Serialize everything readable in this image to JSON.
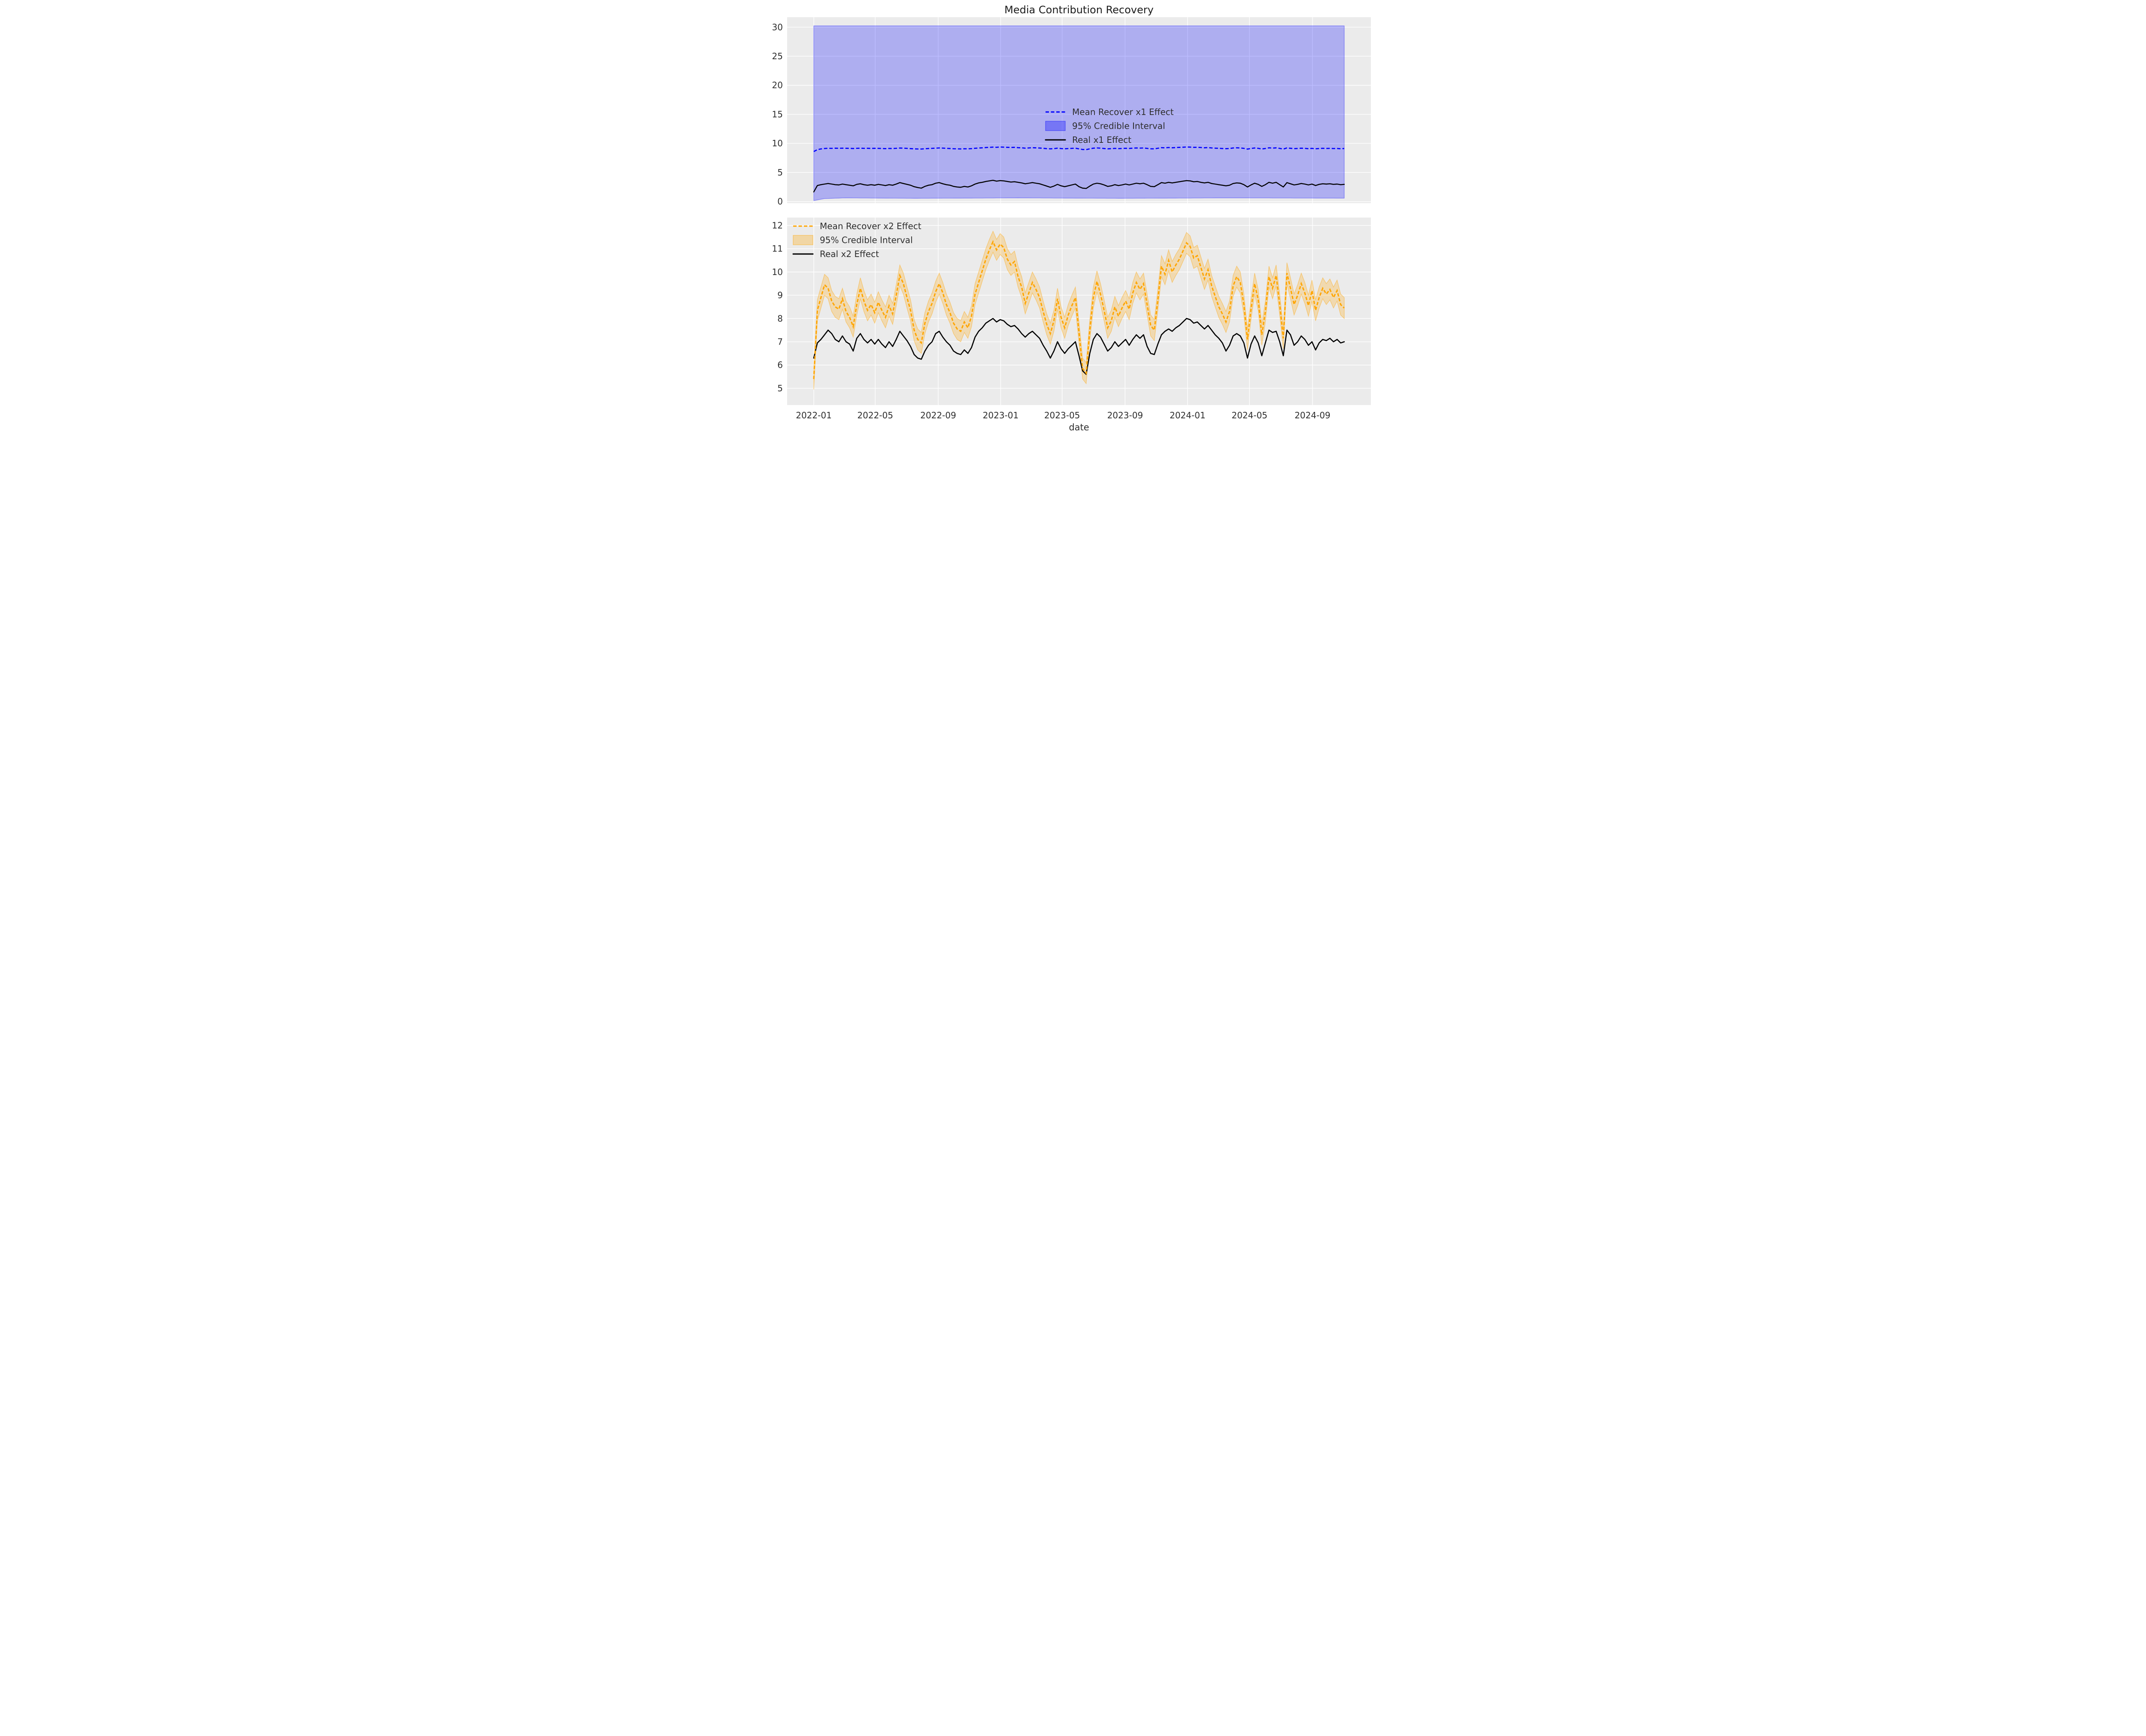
{
  "figure": {
    "title": "Media Contribution Recovery",
    "xlabel": "date",
    "background": "#ffffff",
    "axes_background": "#ebebeb",
    "grid_color": "#ffffff"
  },
  "colors": {
    "x1_mean": "#0000ff",
    "x1_band_fill": "rgba(0,0,255,0.26)",
    "x1_band_edge": "rgba(0,0,255,0.38)",
    "x2_mean": "#ffa500",
    "x2_band_fill": "rgba(255,165,0,0.25)",
    "x2_band_edge": "rgba(255,165,0,0.45)",
    "real_line": "#000000"
  },
  "legend_top": {
    "items": [
      {
        "label": "Mean Recover x1 Effect",
        "swatch": "dashed-line",
        "color": "#0000ff"
      },
      {
        "label": "95% Credible Interval",
        "swatch": "patch",
        "fill": "rgba(0,0,255,0.32)",
        "edge": "rgba(0,0,255,0.45)"
      },
      {
        "label": "Real x1 Effect",
        "swatch": "solid-line",
        "color": "#000000"
      }
    ]
  },
  "legend_bottom": {
    "items": [
      {
        "label": "Mean Recover x2 Effect",
        "swatch": "dashed-line",
        "color": "#ffa500"
      },
      {
        "label": "95% Credible Interval",
        "swatch": "patch",
        "fill": "rgba(255,165,0,0.30)",
        "edge": "rgba(255,165,0,0.5)"
      },
      {
        "label": "Real x2 Effect",
        "swatch": "solid-line",
        "color": "#000000"
      }
    ]
  },
  "chart_data": [
    {
      "type": "line",
      "panel": "top",
      "x_unit": "days since 2022-01-01, weekly sampling (step 7)",
      "x_step_days": 7,
      "x_domain_days": [
        -52,
        1088
      ],
      "x_data_end_day": 1036,
      "ylim": [
        -0.285,
        31.72
      ],
      "yticks": [
        0,
        5,
        10,
        15,
        20,
        25,
        30
      ],
      "grid": true,
      "legend_position": "center",
      "series": [
        {
          "name": "Mean Recover x1 Effect",
          "style": "dashed",
          "values": [
            8.6,
            8.92,
            9.05,
            9.12,
            9.16,
            9.14,
            9.17,
            9.15,
            9.18,
            9.16,
            9.14,
            9.12,
            9.15,
            9.17,
            9.14,
            9.16,
            9.13,
            9.15,
            9.14,
            9.12,
            9.1,
            9.13,
            9.11,
            9.15,
            9.2,
            9.18,
            9.14,
            9.1,
            9.06,
            9.04,
            9.03,
            9.08,
            9.12,
            9.14,
            9.18,
            9.22,
            9.19,
            9.15,
            9.12,
            9.08,
            9.06,
            9.05,
            9.08,
            9.06,
            9.1,
            9.16,
            9.2,
            9.24,
            9.28,
            9.32,
            9.36,
            9.33,
            9.38,
            9.35,
            9.32,
            9.3,
            9.32,
            9.27,
            9.24,
            9.18,
            9.22,
            9.26,
            9.23,
            9.2,
            9.15,
            9.1,
            9.06,
            9.1,
            9.17,
            9.11,
            9.07,
            9.11,
            9.14,
            9.17,
            9.06,
            8.95,
            8.93,
            9.07,
            9.17,
            9.22,
            9.18,
            9.12,
            9.06,
            9.09,
            9.14,
            9.1,
            9.13,
            9.16,
            9.13,
            9.18,
            9.21,
            9.19,
            9.21,
            9.14,
            9.07,
            9.06,
            9.16,
            9.27,
            9.24,
            9.29,
            9.25,
            9.28,
            9.31,
            9.34,
            9.38,
            9.36,
            9.32,
            9.33,
            9.29,
            9.25,
            9.28,
            9.22,
            9.18,
            9.15,
            9.12,
            9.09,
            9.12,
            9.21,
            9.24,
            9.22,
            9.14,
            9.02,
            9.12,
            9.21,
            9.15,
            9.04,
            9.12,
            9.24,
            9.19,
            9.23,
            9.14,
            9.02,
            9.22,
            9.16,
            9.1,
            9.13,
            9.17,
            9.14,
            9.09,
            9.14,
            9.07,
            9.12,
            9.15,
            9.13,
            9.14,
            9.11,
            9.13,
            9.08,
            9.12
          ]
        },
        {
          "name": "95% Credible Interval",
          "style": "band",
          "upper_keypoints": [
            [
              0,
              30.22
            ],
            [
              1036,
              30.22
            ]
          ],
          "lower_keypoints": [
            [
              0,
              0.15
            ],
            [
              21,
              0.5
            ],
            [
              60,
              0.62
            ],
            [
              200,
              0.55
            ],
            [
              400,
              0.62
            ],
            [
              600,
              0.55
            ],
            [
              800,
              0.62
            ],
            [
              1036,
              0.58
            ]
          ]
        },
        {
          "name": "Real x1 Effect",
          "style": "solid",
          "values": [
            1.65,
            2.75,
            2.9,
            3.0,
            3.1,
            3.0,
            2.9,
            2.85,
            3.0,
            2.9,
            2.8,
            2.7,
            2.95,
            3.05,
            2.9,
            2.8,
            2.9,
            2.8,
            2.95,
            2.85,
            2.75,
            2.9,
            2.8,
            3.0,
            3.25,
            3.1,
            2.95,
            2.8,
            2.55,
            2.4,
            2.3,
            2.6,
            2.8,
            2.9,
            3.15,
            3.25,
            3.05,
            2.9,
            2.8,
            2.6,
            2.5,
            2.45,
            2.6,
            2.5,
            2.7,
            3.0,
            3.2,
            3.3,
            3.45,
            3.55,
            3.65,
            3.5,
            3.6,
            3.55,
            3.45,
            3.35,
            3.4,
            3.3,
            3.2,
            3.05,
            3.15,
            3.25,
            3.15,
            3.05,
            2.85,
            2.65,
            2.45,
            2.65,
            2.95,
            2.7,
            2.55,
            2.7,
            2.85,
            3.0,
            2.55,
            2.3,
            2.25,
            2.65,
            3.0,
            3.15,
            3.05,
            2.85,
            2.6,
            2.7,
            2.9,
            2.75,
            2.85,
            3.0,
            2.85,
            3.0,
            3.15,
            3.05,
            3.15,
            2.9,
            2.6,
            2.55,
            2.9,
            3.25,
            3.15,
            3.3,
            3.2,
            3.3,
            3.4,
            3.5,
            3.6,
            3.55,
            3.4,
            3.45,
            3.3,
            3.2,
            3.3,
            3.1,
            3.0,
            2.9,
            2.8,
            2.7,
            2.8,
            3.1,
            3.2,
            3.15,
            2.9,
            2.5,
            2.85,
            3.15,
            2.95,
            2.6,
            2.9,
            3.3,
            3.15,
            3.3,
            2.9,
            2.5,
            3.25,
            3.05,
            2.85,
            2.95,
            3.1,
            3.0,
            2.85,
            3.0,
            2.75,
            2.95,
            3.05,
            3.0,
            3.05,
            2.95,
            3.0,
            2.9,
            2.95
          ]
        }
      ]
    },
    {
      "type": "line",
      "panel": "bottom",
      "x_unit": "days since 2022-01-01, weekly sampling (step 7)",
      "x_step_days": 7,
      "x_domain_days": [
        -52,
        1088
      ],
      "x_data_end_day": 1036,
      "ylim": [
        4.28,
        12.34
      ],
      "yticks": [
        5,
        6,
        7,
        8,
        9,
        10,
        11,
        12
      ],
      "grid": true,
      "legend_position": "upper left",
      "ci_halfwidth": 0.45,
      "xticks": [
        {
          "day": 0,
          "label": "2022-01"
        },
        {
          "day": 120,
          "label": "2022-05"
        },
        {
          "day": 243,
          "label": "2022-09"
        },
        {
          "day": 365,
          "label": "2023-01"
        },
        {
          "day": 485,
          "label": "2023-05"
        },
        {
          "day": 608,
          "label": "2023-09"
        },
        {
          "day": 730,
          "label": "2024-01"
        },
        {
          "day": 851,
          "label": "2024-05"
        },
        {
          "day": 974,
          "label": "2024-09"
        }
      ],
      "series": [
        {
          "name": "Mean Recover x2 Effect",
          "style": "dashed",
          "values": [
            5.4,
            8.35,
            8.9,
            9.45,
            9.3,
            8.75,
            8.5,
            8.4,
            8.85,
            8.3,
            8.05,
            7.65,
            8.6,
            9.3,
            8.75,
            8.35,
            8.6,
            8.25,
            8.7,
            8.35,
            8.05,
            8.55,
            8.2,
            9.0,
            9.85,
            9.5,
            8.9,
            8.35,
            7.5,
            7.1,
            6.95,
            7.8,
            8.3,
            8.65,
            9.15,
            9.5,
            9.1,
            8.6,
            8.25,
            7.8,
            7.55,
            7.45,
            7.85,
            7.6,
            8.1,
            9.05,
            9.55,
            10.05,
            10.55,
            10.95,
            11.3,
            10.95,
            11.2,
            11.05,
            10.55,
            10.3,
            10.45,
            9.8,
            9.35,
            8.65,
            9.1,
            9.55,
            9.25,
            8.9,
            8.3,
            7.75,
            7.35,
            7.9,
            8.85,
            8.05,
            7.6,
            8.15,
            8.55,
            8.9,
            7.4,
            5.85,
            5.65,
            7.5,
            8.9,
            9.6,
            9.05,
            8.35,
            7.6,
            7.9,
            8.5,
            8.1,
            8.45,
            8.75,
            8.4,
            9.1,
            9.55,
            9.25,
            9.5,
            8.6,
            7.7,
            7.5,
            8.8,
            10.25,
            9.9,
            10.5,
            10.0,
            10.3,
            10.55,
            10.9,
            11.25,
            11.1,
            10.6,
            10.7,
            10.2,
            9.7,
            10.1,
            9.4,
            8.95,
            8.5,
            8.2,
            7.85,
            8.3,
            9.4,
            9.8,
            9.55,
            8.6,
            7.1,
            8.4,
            9.5,
            8.8,
            7.3,
            8.3,
            9.8,
            9.3,
            9.85,
            8.6,
            7.15,
            9.95,
            9.3,
            8.6,
            9.0,
            9.5,
            9.1,
            8.55,
            9.2,
            8.35,
            8.9,
            9.3,
            9.05,
            9.25,
            8.9,
            9.2,
            8.6,
            8.45
          ]
        },
        {
          "name": "95% Credible Interval",
          "style": "band",
          "derived_from": "Mean Recover x2 Effect ± 0.45"
        },
        {
          "name": "Real x2 Effect",
          "style": "solid",
          "values": [
            6.3,
            6.95,
            7.1,
            7.3,
            7.5,
            7.35,
            7.1,
            7.0,
            7.25,
            7.0,
            6.9,
            6.6,
            7.15,
            7.35,
            7.1,
            6.95,
            7.1,
            6.9,
            7.1,
            6.9,
            6.75,
            7.0,
            6.8,
            7.1,
            7.45,
            7.25,
            7.05,
            6.8,
            6.45,
            6.3,
            6.25,
            6.6,
            6.85,
            7.0,
            7.35,
            7.45,
            7.2,
            7.0,
            6.85,
            6.6,
            6.5,
            6.45,
            6.65,
            6.5,
            6.75,
            7.2,
            7.45,
            7.6,
            7.8,
            7.9,
            8.0,
            7.85,
            7.95,
            7.9,
            7.75,
            7.65,
            7.7,
            7.55,
            7.35,
            7.2,
            7.35,
            7.45,
            7.3,
            7.15,
            6.85,
            6.6,
            6.3,
            6.6,
            7.0,
            6.7,
            6.5,
            6.7,
            6.85,
            7.0,
            6.4,
            5.75,
            5.6,
            6.5,
            7.1,
            7.35,
            7.2,
            6.9,
            6.6,
            6.75,
            7.0,
            6.8,
            6.95,
            7.1,
            6.85,
            7.1,
            7.3,
            7.15,
            7.3,
            6.8,
            6.5,
            6.45,
            6.9,
            7.3,
            7.45,
            7.55,
            7.45,
            7.6,
            7.7,
            7.85,
            8.0,
            7.95,
            7.8,
            7.85,
            7.7,
            7.55,
            7.7,
            7.5,
            7.3,
            7.15,
            6.95,
            6.6,
            6.85,
            7.25,
            7.35,
            7.25,
            6.95,
            6.3,
            6.9,
            7.25,
            6.95,
            6.4,
            6.95,
            7.5,
            7.4,
            7.45,
            7.0,
            6.4,
            7.5,
            7.3,
            6.85,
            7.0,
            7.25,
            7.1,
            6.85,
            7.0,
            6.65,
            6.95,
            7.1,
            7.05,
            7.15,
            7.0,
            7.1,
            6.95,
            7.0
          ]
        }
      ]
    }
  ]
}
